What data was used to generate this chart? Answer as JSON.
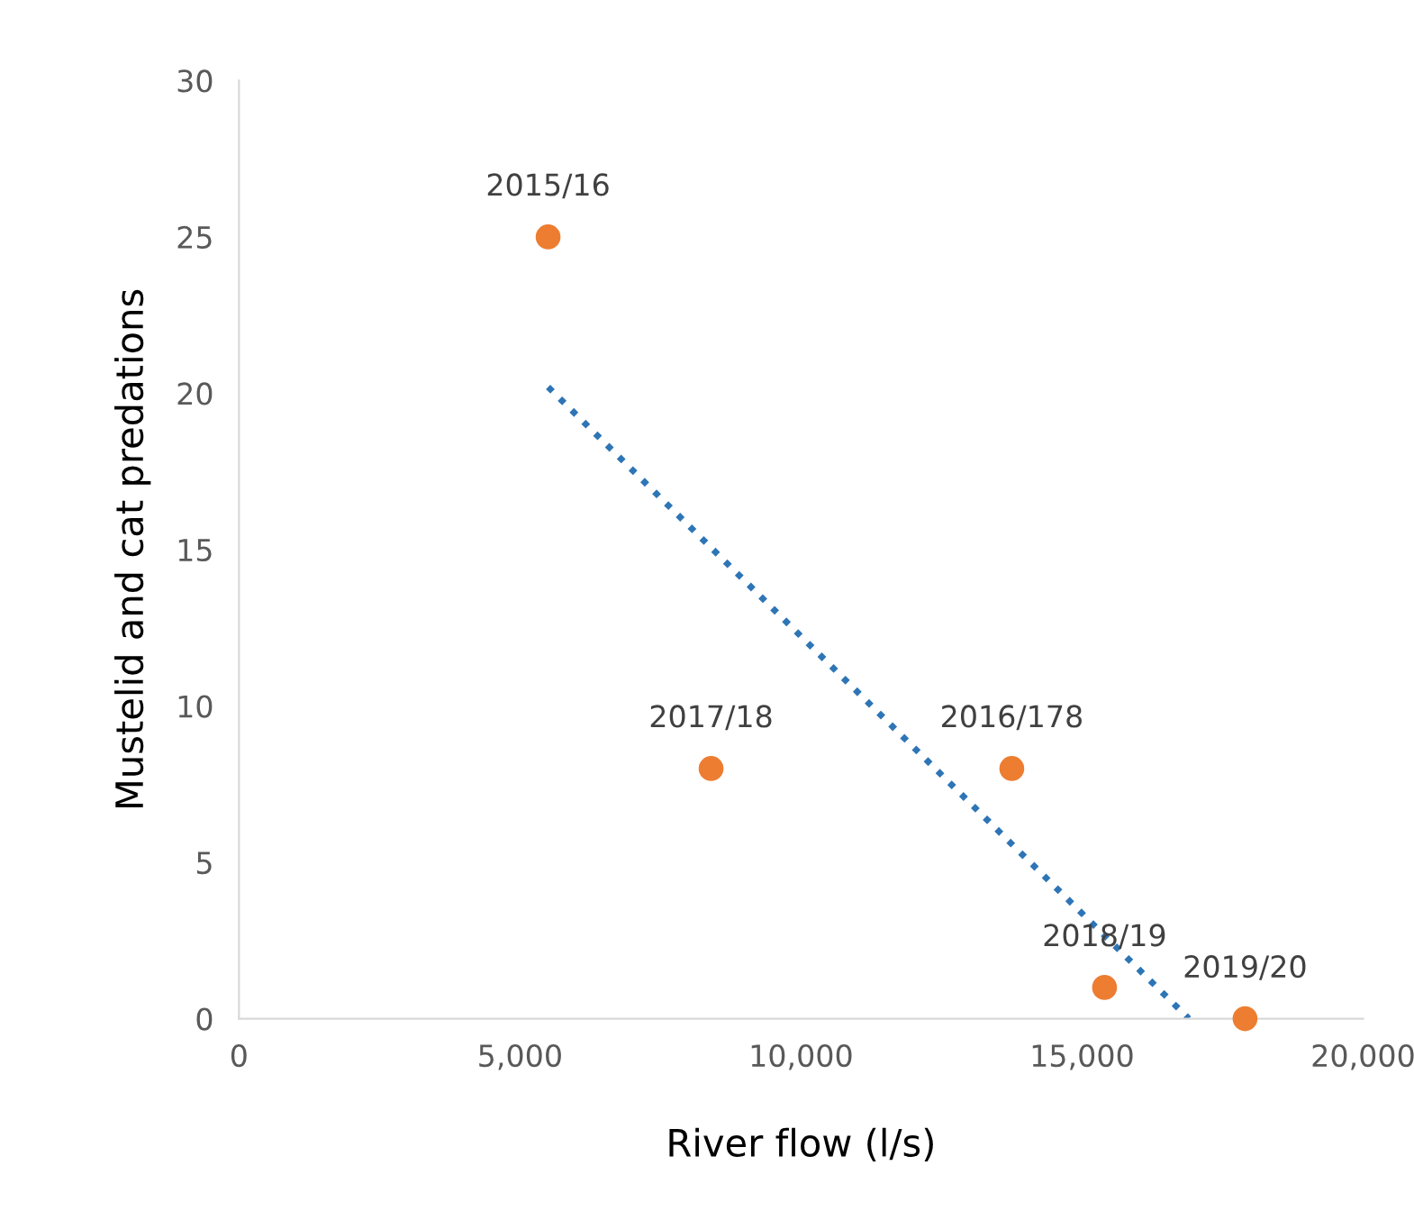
{
  "chart_data": {
    "type": "scatter",
    "xlabel": "River flow (l/s)",
    "ylabel": "Mustelid and cat predations",
    "series": [
      {
        "color": "#ed7d31",
        "x": [
          5500,
          8400,
          13750,
          15400,
          17900
        ],
        "values": [
          25,
          8,
          8,
          1,
          0
        ],
        "marker": "circle"
      },
      {
        "type": "line",
        "color": "#2e75b6",
        "x": [
          5500,
          16900
        ],
        "values": [
          20.2,
          0
        ],
        "line_style": "dotted",
        "marker": "none"
      }
    ],
    "annotations": [
      {
        "text": "2015/16",
        "x": 5500,
        "y": 25
      },
      {
        "text": "2017/18",
        "x": 8400,
        "y": 8
      },
      {
        "text": "2016/178",
        "x": 13750,
        "y": 8
      },
      {
        "text": "2018/19",
        "x": 15400,
        "y": 1
      },
      {
        "text": "2019/20",
        "x": 17900,
        "y": 0
      }
    ],
    "xlim": [
      0,
      20000
    ],
    "xticks": [
      {
        "value": 0,
        "label": "0"
      },
      {
        "value": 5000,
        "label": "5,000"
      },
      {
        "value": 10000,
        "label": "10,000"
      },
      {
        "value": 15000,
        "label": "15,000"
      },
      {
        "value": 20000,
        "label": "20,000"
      }
    ],
    "ylim": [
      0,
      30
    ],
    "yticks": [
      0,
      5,
      10,
      15,
      20,
      25,
      30
    ],
    "grid": false
  }
}
